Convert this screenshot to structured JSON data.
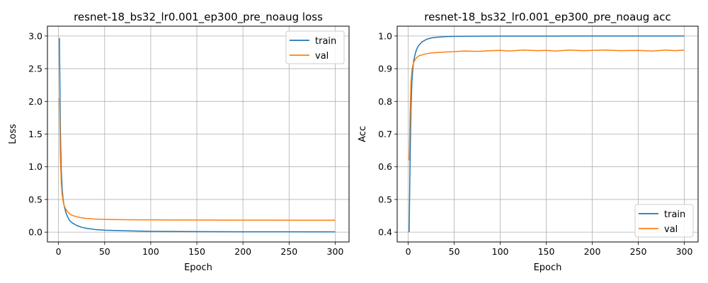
{
  "chart_data": [
    {
      "type": "line",
      "title": "resnet-18_bs32_lr0.001_ep300_pre_noaug loss",
      "xlabel": "Epoch",
      "ylabel": "Loss",
      "xlim": [
        -12,
        315
      ],
      "ylim": [
        -0.15,
        3.15
      ],
      "xticks": [
        0,
        50,
        100,
        150,
        200,
        250,
        300
      ],
      "yticks": [
        0.0,
        0.5,
        1.0,
        1.5,
        2.0,
        2.5,
        3.0
      ],
      "ytick_labels": [
        "0.0",
        "0.5",
        "1.0",
        "1.5",
        "2.0",
        "2.5",
        "3.0"
      ],
      "grid": true,
      "legend_position": "top-right",
      "series": [
        {
          "name": "train",
          "color": "#1f77b4",
          "x": [
            1,
            2,
            3,
            4,
            5,
            6,
            8,
            10,
            12,
            15,
            20,
            25,
            30,
            40,
            50,
            75,
            100,
            150,
            200,
            250,
            300
          ],
          "y": [
            2.97,
            1.55,
            0.95,
            0.66,
            0.5,
            0.41,
            0.3,
            0.23,
            0.18,
            0.14,
            0.1,
            0.075,
            0.06,
            0.04,
            0.03,
            0.02,
            0.012,
            0.008,
            0.006,
            0.005,
            0.004
          ]
        },
        {
          "name": "val",
          "color": "#ff7f0e",
          "x": [
            1,
            2,
            3,
            4,
            5,
            6,
            8,
            10,
            12,
            15,
            20,
            25,
            30,
            40,
            50,
            75,
            100,
            150,
            200,
            250,
            300
          ],
          "y": [
            2.05,
            1.15,
            0.75,
            0.57,
            0.47,
            0.41,
            0.35,
            0.31,
            0.28,
            0.255,
            0.235,
            0.22,
            0.21,
            0.2,
            0.195,
            0.19,
            0.188,
            0.185,
            0.184,
            0.183,
            0.183
          ]
        }
      ]
    },
    {
      "type": "line",
      "title": "resnet-18_bs32_lr0.001_ep300_pre_noaug acc",
      "xlabel": "Epoch",
      "ylabel": "Acc",
      "xlim": [
        -12,
        315
      ],
      "ylim": [
        0.37,
        1.03
      ],
      "xticks": [
        0,
        50,
        100,
        150,
        200,
        250,
        300
      ],
      "yticks": [
        0.4,
        0.5,
        0.6,
        0.7,
        0.8,
        0.9,
        1.0
      ],
      "ytick_labels": [
        "0.4",
        "0.5",
        "0.6",
        "0.7",
        "0.8",
        "0.9",
        "1.0"
      ],
      "grid": true,
      "legend_position": "bottom-right",
      "series": [
        {
          "name": "train",
          "color": "#1f77b4",
          "x": [
            1,
            2,
            3,
            4,
            5,
            6,
            8,
            10,
            12,
            15,
            20,
            25,
            30,
            40,
            50,
            75,
            100,
            150,
            200,
            250,
            300
          ],
          "y": [
            0.4,
            0.62,
            0.78,
            0.86,
            0.9,
            0.925,
            0.95,
            0.965,
            0.973,
            0.982,
            0.99,
            0.994,
            0.996,
            0.998,
            0.999,
            0.9995,
            0.9997,
            0.9998,
            0.9999,
            0.9999,
            1.0
          ]
        },
        {
          "name": "val",
          "color": "#ff7f0e",
          "x": [
            1,
            2,
            3,
            4,
            5,
            6,
            8,
            10,
            12,
            15,
            20,
            25,
            30,
            40,
            50,
            60,
            75,
            90,
            100,
            110,
            125,
            140,
            150,
            160,
            175,
            190,
            200,
            215,
            230,
            250,
            265,
            280,
            290,
            300
          ],
          "y": [
            0.62,
            0.76,
            0.86,
            0.895,
            0.91,
            0.92,
            0.93,
            0.936,
            0.94,
            0.942,
            0.946,
            0.948,
            0.949,
            0.951,
            0.952,
            0.954,
            0.953,
            0.955,
            0.956,
            0.954,
            0.957,
            0.955,
            0.956,
            0.954,
            0.957,
            0.955,
            0.956,
            0.957,
            0.955,
            0.956,
            0.954,
            0.957,
            0.955,
            0.957
          ]
        }
      ]
    }
  ]
}
